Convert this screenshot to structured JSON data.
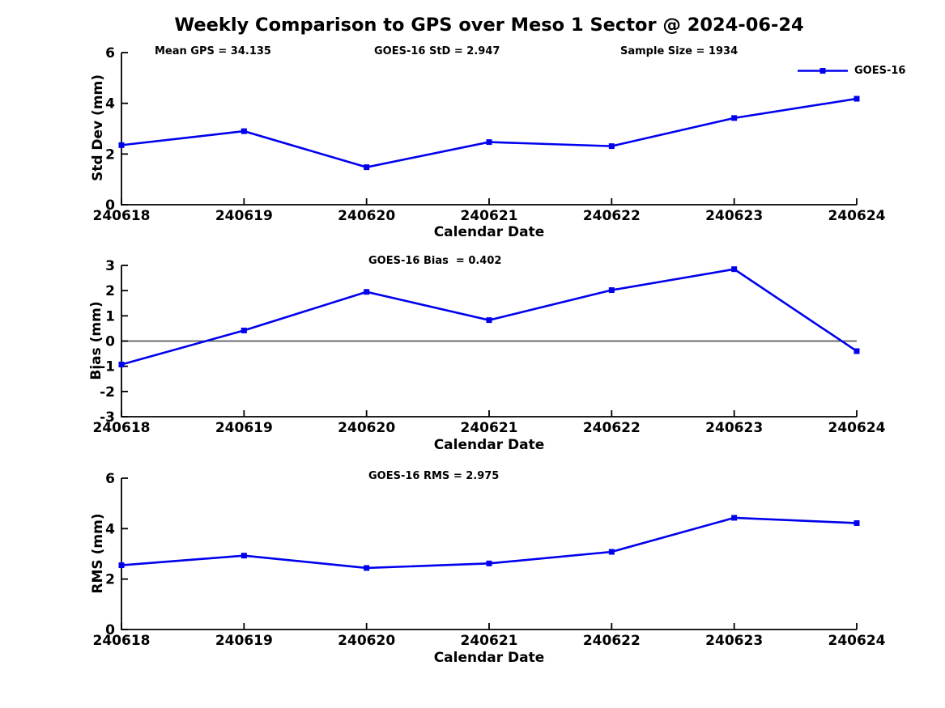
{
  "figure": {
    "title": "Weekly Comparison to GPS over Meso 1 Sector @ 2024-06-24"
  },
  "colors": {
    "series_blue": "#0000ee",
    "axis": "#000000",
    "zero_line": "#5a5a5a",
    "background": "#ffffff"
  },
  "legend": {
    "label": "GOES-16"
  },
  "chart_data": [
    {
      "id": "std-dev",
      "type": "line",
      "annotations": [
        "Mean GPS = 34.135",
        "GOES-16 StD = 2.947",
        "Sample Size = 1934"
      ],
      "categories": [
        "240618",
        "240619",
        "240620",
        "240621",
        "240622",
        "240623",
        "240624"
      ],
      "series": [
        {
          "name": "GOES-16",
          "color": "#0000ee",
          "marker": "square",
          "values": [
            2.35,
            2.9,
            1.48,
            2.47,
            2.31,
            3.42,
            4.18
          ]
        }
      ],
      "xlabel": "Calendar Date",
      "ylabel": "Std Dev (mm)",
      "ylim": [
        0,
        6
      ],
      "yticks": [
        0,
        2,
        4,
        6
      ],
      "grid": false,
      "legend_position": "top-right"
    },
    {
      "id": "bias",
      "type": "line",
      "annotations": [
        "GOES-16 Bias  = 0.402"
      ],
      "categories": [
        "240618",
        "240619",
        "240620",
        "240621",
        "240622",
        "240623",
        "240624"
      ],
      "series": [
        {
          "name": "GOES-16",
          "color": "#0000ee",
          "marker": "square",
          "values": [
            -0.93,
            0.42,
            1.95,
            0.83,
            2.02,
            2.85,
            -0.4
          ]
        }
      ],
      "xlabel": "Calendar Date",
      "ylabel": "Bias (mm)",
      "ylim": [
        -3,
        3
      ],
      "yticks": [
        3,
        2,
        1,
        0,
        -1,
        -2,
        -3
      ],
      "zero_line": true,
      "grid": false
    },
    {
      "id": "rms",
      "type": "line",
      "annotations": [
        "GOES-16 RMS = 2.975"
      ],
      "categories": [
        "240618",
        "240619",
        "240620",
        "240621",
        "240622",
        "240623",
        "240624"
      ],
      "series": [
        {
          "name": "GOES-16",
          "color": "#0000ee",
          "marker": "square",
          "values": [
            2.55,
            2.93,
            2.44,
            2.62,
            3.08,
            4.43,
            4.22
          ]
        }
      ],
      "xlabel": "Calendar Date",
      "ylabel": "RMS (mm)",
      "ylim": [
        0,
        6
      ],
      "yticks": [
        0,
        2,
        4,
        6
      ],
      "grid": false
    }
  ]
}
